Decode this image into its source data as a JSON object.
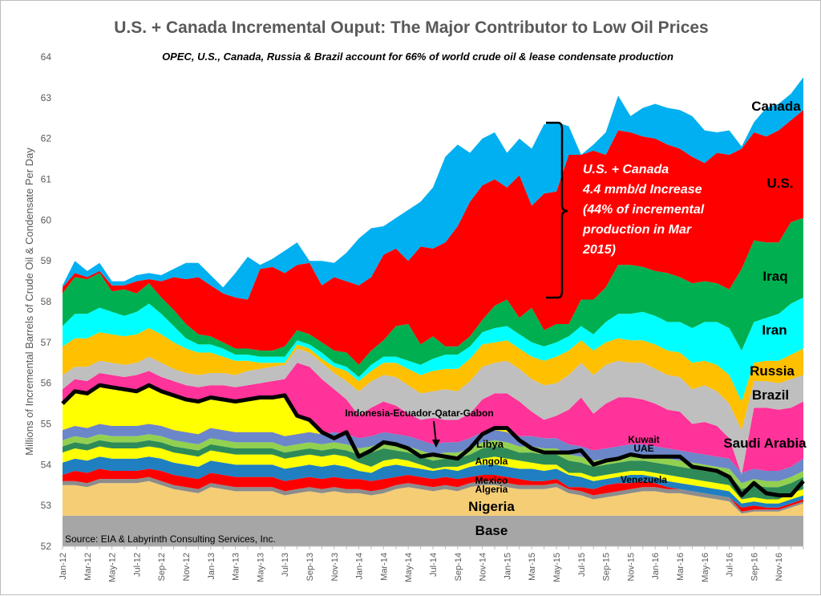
{
  "chart_data": {
    "type": "area",
    "title": "U.S. + Canada Incremental Ouput: The Major Contributor to Low Oil Prices",
    "subtitle": "OPEC, U.S., Canada, Russia & Brazil account for 66% of world crude oil & lease condensate production",
    "ylabel": "Millions of Incremental Barrels of Crude Oil & Condensate Per Day",
    "ylim": [
      52,
      64
    ],
    "yticks": [
      "52",
      "53",
      "54",
      "55",
      "56",
      "57",
      "58",
      "59",
      "60",
      "61",
      "62",
      "63",
      "64"
    ],
    "x_tick_labels": [
      "Jan-12",
      "Mar-12",
      "May-12",
      "Jul-12",
      "Sep-12",
      "Nov-12",
      "Jan-13",
      "Mar-13",
      "May-13",
      "Jul-13",
      "Sep-13",
      "Nov-13",
      "Jan-14",
      "Mar-14",
      "May-14",
      "Jul-14",
      "Sep-14",
      "Nov-14",
      "Jan-15",
      "Mar-15",
      "May-15",
      "Jul-15",
      "Sep-15",
      "Nov-15",
      "Jan-16",
      "Mar-16",
      "May-16",
      "Jul-16",
      "Sep-16",
      "Nov-16"
    ],
    "series_order_bottom_to_top": [
      "Base",
      "Nigeria",
      "Algeria",
      "Mexico",
      "Angola",
      "Libya",
      "Indonesia-Ecuador-Qatar-Gabon",
      "Venezuela",
      "UAE",
      "Kuwait",
      "Saudi Arabia",
      "Brazil",
      "Russia",
      "Iran",
      "Iraq",
      "U.S.",
      "Canada"
    ],
    "series_colors": [
      "#a6a6a6",
      "#f5cd75",
      "#8c8c8c",
      "#ff0000",
      "#1f7fc0",
      "#ffff00",
      "#000000",
      "#2e8b57",
      "#92d050",
      "#6b86c9",
      "#ff3399",
      "#bfbfbf",
      "#ffc000",
      "#00ffff",
      "#00b050",
      "#ff0000",
      "#00b0f0"
    ],
    "top_boundaries": {
      "Base": [
        52.75,
        52.75,
        52.75,
        52.75,
        52.75,
        52.75,
        52.75,
        52.75,
        52.75,
        52.75,
        52.75,
        52.75,
        52.75,
        52.75,
        52.75,
        52.75,
        52.75,
        52.75,
        52.75,
        52.75,
        52.75,
        52.75,
        52.75,
        52.75,
        52.75,
        52.75,
        52.75,
        52.75,
        52.75,
        52.75,
        52.75,
        52.75,
        52.75,
        52.75,
        52.75,
        52.75,
        52.75,
        52.75,
        52.75,
        52.75,
        52.75,
        52.75,
        52.75,
        52.75,
        52.75,
        52.75,
        52.75,
        52.75,
        52.75,
        52.75,
        52.75,
        52.75,
        52.75,
        52.75,
        52.75,
        52.75,
        52.75,
        52.75,
        52.75,
        52.75,
        52.75
      ],
      "Nigeria": [
        53.5,
        53.5,
        53.45,
        53.55,
        53.55,
        53.55,
        53.55,
        53.6,
        53.5,
        53.4,
        53.35,
        53.3,
        53.45,
        53.4,
        53.35,
        53.35,
        53.35,
        53.35,
        53.25,
        53.3,
        53.35,
        53.3,
        53.35,
        53.3,
        53.3,
        53.25,
        53.3,
        53.4,
        53.45,
        53.4,
        53.35,
        53.4,
        53.35,
        53.45,
        53.5,
        53.5,
        53.45,
        53.4,
        53.4,
        53.4,
        53.45,
        53.3,
        53.25,
        53.15,
        53.2,
        53.25,
        53.3,
        53.35,
        53.35,
        53.3,
        53.3,
        53.25,
        53.2,
        53.15,
        53.1,
        52.8,
        52.85,
        52.85,
        52.85,
        52.95,
        53.05
      ],
      "Algeria": [
        53.6,
        53.6,
        53.55,
        53.65,
        53.65,
        53.65,
        53.65,
        53.7,
        53.6,
        53.5,
        53.45,
        53.4,
        53.55,
        53.5,
        53.45,
        53.45,
        53.45,
        53.45,
        53.35,
        53.4,
        53.45,
        53.4,
        53.45,
        53.4,
        53.4,
        53.35,
        53.4,
        53.5,
        53.55,
        53.5,
        53.45,
        53.5,
        53.45,
        53.55,
        53.6,
        53.6,
        53.55,
        53.5,
        53.5,
        53.5,
        53.55,
        53.4,
        53.35,
        53.25,
        53.3,
        53.35,
        53.4,
        53.45,
        53.45,
        53.4,
        53.4,
        53.35,
        53.3,
        53.25,
        53.2,
        52.85,
        52.9,
        52.9,
        52.9,
        53.0,
        53.1
      ],
      "Mexico": [
        53.75,
        53.85,
        53.8,
        53.9,
        53.85,
        53.85,
        53.85,
        53.9,
        53.85,
        53.75,
        53.7,
        53.65,
        53.8,
        53.75,
        53.7,
        53.7,
        53.7,
        53.7,
        53.6,
        53.65,
        53.7,
        53.65,
        53.7,
        53.65,
        53.65,
        53.6,
        53.65,
        53.7,
        53.75,
        53.7,
        53.65,
        53.7,
        53.65,
        53.7,
        53.75,
        53.75,
        53.7,
        53.65,
        53.6,
        53.6,
        53.65,
        53.45,
        53.45,
        53.4,
        53.5,
        53.55,
        53.55,
        53.6,
        53.55,
        53.45,
        53.4,
        53.35,
        53.3,
        53.25,
        53.2,
        52.95,
        53.0,
        52.95,
        52.95,
        53.05,
        53.15
      ],
      "Angola": [
        54.05,
        54.15,
        54.1,
        54.2,
        54.15,
        54.15,
        54.15,
        54.2,
        54.15,
        54.05,
        54.0,
        53.95,
        54.1,
        54.05,
        54.0,
        54.0,
        54.0,
        54.0,
        53.9,
        53.95,
        54.0,
        53.95,
        54.0,
        53.95,
        53.85,
        53.8,
        53.95,
        54.0,
        53.95,
        53.9,
        53.85,
        53.9,
        53.85,
        53.95,
        54.0,
        54.0,
        53.95,
        53.9,
        53.9,
        53.85,
        53.9,
        53.75,
        53.7,
        53.6,
        53.65,
        53.7,
        53.75,
        53.75,
        53.7,
        53.6,
        53.55,
        53.5,
        53.45,
        53.4,
        53.35,
        53.05,
        53.1,
        53.05,
        53.05,
        53.15,
        53.25
      ],
      "Libya": [
        54.3,
        54.4,
        54.35,
        54.45,
        54.4,
        54.4,
        54.4,
        54.45,
        54.4,
        54.3,
        54.25,
        54.2,
        54.35,
        54.3,
        54.25,
        54.25,
        54.25,
        54.25,
        54.15,
        54.2,
        54.25,
        54.2,
        54.25,
        54.2,
        54.05,
        53.95,
        54.1,
        54.15,
        54.1,
        54.0,
        53.9,
        53.95,
        53.95,
        54.05,
        54.15,
        54.2,
        54.15,
        54.1,
        54.05,
        54.0,
        54.0,
        53.8,
        53.8,
        53.7,
        53.75,
        53.8,
        53.85,
        53.85,
        53.8,
        53.75,
        53.7,
        53.65,
        53.6,
        53.55,
        53.5,
        53.15,
        53.2,
        53.15,
        53.15,
        53.3,
        53.4
      ],
      "Indonesia-Ecuador-Qatar-Gabon": [
        55.5,
        55.8,
        55.75,
        55.95,
        55.9,
        55.85,
        55.8,
        55.95,
        55.8,
        55.7,
        55.6,
        55.55,
        55.65,
        55.6,
        55.55,
        55.6,
        55.65,
        55.65,
        55.7,
        55.2,
        55.1,
        54.8,
        54.65,
        54.8,
        54.2,
        54.35,
        54.55,
        54.5,
        54.4,
        54.2,
        54.25,
        54.2,
        54.15,
        54.4,
        54.75,
        54.9,
        54.9,
        54.6,
        54.4,
        54.3,
        54.3,
        54.3,
        54.35,
        54.0,
        54.1,
        54.15,
        54.25,
        54.2,
        54.2,
        54.2,
        54.2,
        53.95,
        53.9,
        53.85,
        53.7,
        53.25,
        53.55,
        53.3,
        53.25,
        53.25,
        53.6
      ],
      "Venezuela": [
        54.45,
        54.55,
        54.5,
        54.6,
        54.55,
        54.55,
        54.55,
        54.6,
        54.55,
        54.45,
        54.4,
        54.35,
        54.5,
        54.45,
        54.4,
        54.4,
        54.4,
        54.4,
        54.3,
        54.35,
        54.4,
        54.35,
        54.4,
        54.35,
        54.25,
        54.3,
        54.4,
        54.35,
        54.3,
        54.2,
        54.1,
        54.15,
        54.15,
        54.25,
        54.4,
        54.45,
        54.4,
        54.3,
        54.3,
        54.25,
        54.25,
        54.1,
        54.05,
        53.95,
        54.0,
        54.05,
        54.1,
        54.1,
        54.05,
        54.0,
        53.95,
        53.9,
        53.85,
        53.8,
        53.75,
        53.4,
        53.5,
        53.45,
        53.45,
        53.55,
        53.7
      ],
      "UAE": [
        54.6,
        54.7,
        54.65,
        54.75,
        54.7,
        54.7,
        54.7,
        54.75,
        54.7,
        54.6,
        54.55,
        54.5,
        54.65,
        54.6,
        54.55,
        54.55,
        54.55,
        54.55,
        54.45,
        54.5,
        54.55,
        54.5,
        54.55,
        54.5,
        54.4,
        54.45,
        54.55,
        54.5,
        54.45,
        54.35,
        54.25,
        54.3,
        54.3,
        54.4,
        54.55,
        54.6,
        54.55,
        54.45,
        54.45,
        54.4,
        54.4,
        54.25,
        54.2,
        54.1,
        54.15,
        54.2,
        54.25,
        54.25,
        54.2,
        54.15,
        54.1,
        54.05,
        54.0,
        53.95,
        53.9,
        53.55,
        53.65,
        53.6,
        53.6,
        53.7,
        53.85
      ],
      "Kuwait": [
        54.85,
        54.95,
        54.9,
        55.0,
        54.95,
        54.95,
        54.95,
        55.0,
        54.95,
        54.85,
        54.8,
        54.75,
        54.9,
        54.85,
        54.8,
        54.8,
        54.8,
        54.8,
        54.7,
        54.75,
        54.8,
        54.75,
        54.8,
        54.75,
        54.65,
        54.7,
        54.8,
        54.75,
        54.7,
        54.6,
        54.5,
        54.55,
        54.55,
        54.65,
        54.8,
        54.85,
        54.8,
        54.7,
        54.7,
        54.65,
        54.65,
        54.5,
        54.45,
        54.35,
        54.4,
        54.45,
        54.5,
        54.5,
        54.45,
        54.4,
        54.35,
        54.3,
        54.25,
        54.2,
        54.15,
        53.8,
        53.9,
        53.85,
        53.85,
        53.95,
        54.15
      ],
      "Saudi Arabia": [
        55.85,
        56.1,
        56.05,
        56.25,
        56.2,
        56.15,
        56.2,
        56.3,
        56.15,
        56.05,
        55.95,
        55.9,
        55.95,
        55.95,
        55.9,
        55.95,
        56.0,
        56.05,
        56.1,
        56.5,
        56.4,
        56.1,
        55.85,
        55.6,
        55.2,
        55.4,
        55.55,
        55.45,
        55.25,
        55.1,
        55.15,
        55.1,
        55.1,
        55.25,
        55.6,
        55.75,
        55.75,
        55.55,
        55.3,
        55.1,
        55.2,
        55.35,
        55.65,
        55.25,
        55.5,
        55.65,
        55.65,
        55.6,
        55.5,
        55.35,
        55.3,
        55.0,
        55.05,
        54.95,
        54.65,
        53.75,
        55.4,
        55.4,
        55.35,
        55.4,
        55.55
      ],
      "Brazil": [
        56.2,
        56.4,
        56.4,
        56.55,
        56.5,
        56.45,
        56.5,
        56.65,
        56.5,
        56.35,
        56.25,
        56.2,
        56.25,
        56.25,
        56.2,
        56.3,
        56.35,
        56.4,
        56.45,
        56.85,
        56.75,
        56.5,
        56.25,
        56.05,
        55.8,
        56.05,
        56.2,
        56.15,
        55.95,
        55.75,
        55.8,
        55.85,
        55.8,
        56.05,
        56.4,
        56.5,
        56.55,
        56.35,
        56.1,
        55.95,
        56.0,
        56.2,
        56.5,
        56.2,
        56.45,
        56.55,
        56.5,
        56.5,
        56.35,
        56.2,
        56.15,
        55.85,
        55.95,
        55.8,
        55.5,
        54.85,
        56.05,
        56.05,
        56.0,
        56.1,
        56.2
      ],
      "Russia": [
        56.9,
        57.1,
        57.1,
        57.25,
        57.2,
        57.15,
        57.2,
        57.35,
        57.2,
        57.0,
        56.85,
        56.75,
        56.75,
        56.65,
        56.55,
        56.55,
        56.5,
        56.5,
        56.5,
        56.95,
        56.85,
        56.6,
        56.4,
        56.3,
        56.05,
        56.3,
        56.5,
        56.5,
        56.35,
        56.2,
        56.3,
        56.35,
        56.35,
        56.6,
        56.95,
        57.0,
        57.05,
        56.85,
        56.65,
        56.55,
        56.65,
        56.8,
        57.05,
        56.8,
        57.0,
        57.1,
        57.05,
        57.05,
        56.95,
        56.8,
        56.75,
        56.5,
        56.55,
        56.45,
        56.2,
        55.55,
        56.5,
        56.55,
        56.55,
        56.7,
        56.85
      ],
      "Iran": [
        57.4,
        57.7,
        57.7,
        57.85,
        57.75,
        57.65,
        57.75,
        57.95,
        57.7,
        57.4,
        57.1,
        56.95,
        56.95,
        56.85,
        56.7,
        56.7,
        56.65,
        56.65,
        56.65,
        57.05,
        56.95,
        56.75,
        56.5,
        56.4,
        56.15,
        56.45,
        56.65,
        56.65,
        56.55,
        56.45,
        56.6,
        56.7,
        56.7,
        56.9,
        57.25,
        57.35,
        57.4,
        57.2,
        57.0,
        56.9,
        57.0,
        57.15,
        57.4,
        57.2,
        57.5,
        57.7,
        57.7,
        57.75,
        57.65,
        57.5,
        57.5,
        57.35,
        57.5,
        57.5,
        57.35,
        56.8,
        57.5,
        57.6,
        57.7,
        57.95,
        58.1
      ],
      "Iraq": [
        58.2,
        58.6,
        58.55,
        58.7,
        58.25,
        58.3,
        58.2,
        58.45,
        58.1,
        57.8,
        57.45,
        57.2,
        57.15,
        57.0,
        56.85,
        56.85,
        56.8,
        56.8,
        56.9,
        57.3,
        57.2,
        57.0,
        56.8,
        56.75,
        56.45,
        56.8,
        57.05,
        57.4,
        57.45,
        56.95,
        57.15,
        56.9,
        56.9,
        57.15,
        57.55,
        57.9,
        58.05,
        57.6,
        57.85,
        57.3,
        57.45,
        57.45,
        58.05,
        58.05,
        58.35,
        58.9,
        58.9,
        58.85,
        58.75,
        58.7,
        58.6,
        58.45,
        58.5,
        58.45,
        58.3,
        58.8,
        59.5,
        59.45,
        59.45,
        59.95,
        60.05
      ],
      "U.S.": [
        58.35,
        58.7,
        58.6,
        58.75,
        58.4,
        58.4,
        58.5,
        58.55,
        58.5,
        58.6,
        58.55,
        58.6,
        58.4,
        58.2,
        58.1,
        58.05,
        58.8,
        58.85,
        58.7,
        58.9,
        58.95,
        58.4,
        58.6,
        58.5,
        58.4,
        58.6,
        59.15,
        59.3,
        59.0,
        59.35,
        59.3,
        59.45,
        59.85,
        60.45,
        60.85,
        61.0,
        60.8,
        61.1,
        60.35,
        60.65,
        60.7,
        61.6,
        61.6,
        61.7,
        61.6,
        62.2,
        62.15,
        62.05,
        62.0,
        61.85,
        61.75,
        61.55,
        61.4,
        61.65,
        61.6,
        61.75,
        62.15,
        62.05,
        62.2,
        62.45,
        62.7
      ],
      "Canada": [
        58.4,
        59.0,
        58.75,
        58.95,
        58.5,
        58.5,
        58.65,
        58.7,
        58.65,
        58.8,
        58.95,
        58.95,
        58.65,
        58.35,
        58.7,
        59.1,
        58.9,
        59.05,
        59.25,
        59.45,
        59.0,
        59.0,
        58.95,
        59.2,
        59.55,
        59.8,
        59.85,
        60.05,
        60.25,
        60.45,
        60.8,
        61.55,
        61.85,
        61.65,
        62.0,
        62.15,
        61.65,
        62.0,
        61.75,
        62.35,
        62.4,
        62.3,
        61.6,
        61.85,
        62.15,
        63.05,
        62.55,
        62.75,
        62.85,
        62.75,
        62.7,
        62.55,
        62.2,
        62.15,
        62.2,
        61.8,
        62.4,
        62.75,
        62.85,
        63.1,
        63.5
      ]
    },
    "series_labels": [
      "Base",
      "Nigeria",
      "Algeria",
      "Mexico",
      "Angola",
      "Libya",
      "Indonesia-Ecuador-Qatar-Gabon",
      "Venezuela",
      "UAE",
      "Kuwait",
      "Saudi Arabia",
      "Brazil",
      "Russia",
      "Iran",
      "Iraq",
      "U.S.",
      "Canada"
    ],
    "annotation": {
      "lines": [
        "U.S. + Canada",
        "4.4 mmb/d Increase",
        "(44% of incremental",
        "production in Mar",
        "2015)"
      ]
    },
    "source": "Source: EIA &  Labyrinth Consulting Services, Inc."
  }
}
